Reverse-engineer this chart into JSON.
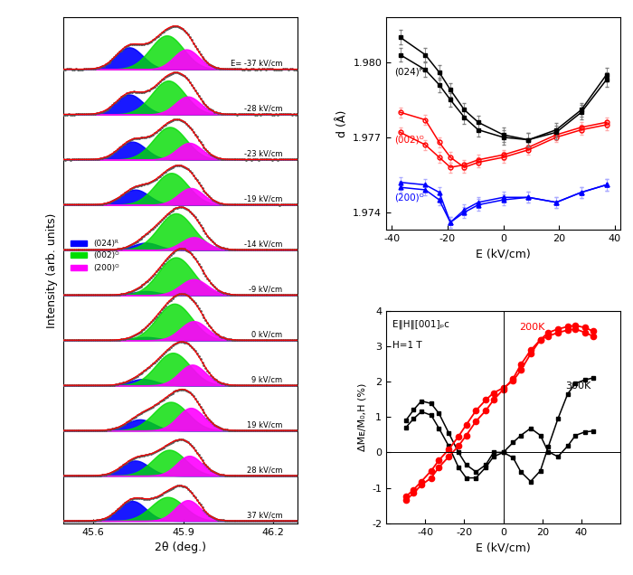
{
  "left_panel": {
    "xlabel": "2θ (deg.)",
    "ylabel": "Intensity (arb. units)",
    "xlim": [
      45.5,
      46.28
    ],
    "xticks": [
      45.6,
      45.9,
      46.2
    ],
    "labels": [
      "E= -37 kV/cm",
      "-28 kV/cm",
      "-23 kV/cm",
      "-19 kV/cm",
      "-14 kV/cm",
      "-9 kV/cm",
      "0 kV/cm",
      "9 kV/cm",
      "19 kV/cm",
      "28 kV/cm",
      "37 kV/cm"
    ],
    "peak_configs": [
      {
        "bc": 45.72,
        "gc": 45.845,
        "mc": 45.91,
        "ba": 0.55,
        "ga": 0.85,
        "ma": 0.5,
        "sb": 0.045,
        "sg": 0.055,
        "sm": 0.042
      },
      {
        "bc": 45.72,
        "gc": 45.85,
        "mc": 45.915,
        "ba": 0.5,
        "ga": 0.85,
        "ma": 0.45,
        "sb": 0.045,
        "sg": 0.055,
        "sm": 0.042
      },
      {
        "bc": 45.73,
        "gc": 45.855,
        "mc": 45.92,
        "ba": 0.45,
        "ga": 0.82,
        "ma": 0.42,
        "sb": 0.045,
        "sg": 0.055,
        "sm": 0.042
      },
      {
        "bc": 45.74,
        "gc": 45.86,
        "mc": 45.925,
        "ba": 0.38,
        "ga": 0.8,
        "ma": 0.42,
        "sb": 0.045,
        "sg": 0.055,
        "sm": 0.042
      },
      {
        "bc": 45.775,
        "gc": 45.875,
        "mc": 45.935,
        "ba": 0.18,
        "ga": 0.92,
        "ma": 0.32,
        "sb": 0.042,
        "sg": 0.058,
        "sm": 0.042
      },
      {
        "bc": 45.775,
        "gc": 45.875,
        "mc": 45.935,
        "ba": 0.1,
        "ga": 0.95,
        "ma": 0.4,
        "sb": 0.042,
        "sg": 0.058,
        "sm": 0.045
      },
      {
        "bc": 45.775,
        "gc": 45.87,
        "mc": 45.935,
        "ba": 0.08,
        "ga": 0.92,
        "ma": 0.48,
        "sb": 0.042,
        "sg": 0.058,
        "sm": 0.045
      },
      {
        "bc": 45.765,
        "gc": 45.865,
        "mc": 45.93,
        "ba": 0.16,
        "ga": 0.82,
        "ma": 0.52,
        "sb": 0.043,
        "sg": 0.057,
        "sm": 0.044
      },
      {
        "bc": 45.755,
        "gc": 45.858,
        "mc": 45.925,
        "ba": 0.28,
        "ga": 0.72,
        "ma": 0.57,
        "sb": 0.045,
        "sg": 0.057,
        "sm": 0.044
      },
      {
        "bc": 45.74,
        "gc": 45.853,
        "mc": 45.92,
        "ba": 0.38,
        "ga": 0.65,
        "ma": 0.5,
        "sb": 0.045,
        "sg": 0.055,
        "sm": 0.042
      },
      {
        "bc": 45.73,
        "gc": 45.848,
        "mc": 45.915,
        "ba": 0.5,
        "ga": 0.6,
        "ma": 0.52,
        "sb": 0.045,
        "sg": 0.055,
        "sm": 0.042
      }
    ]
  },
  "top_right": {
    "ylabel": "d (Å)",
    "xlabel": "E (kV/cm)",
    "xlim": [
      -42,
      42
    ],
    "xticks": [
      -40,
      -20,
      0,
      20,
      40
    ],
    "ylim": [
      1.9733,
      1.9818
    ],
    "yticks": [
      1.974,
      1.977,
      1.98
    ],
    "black_E": [
      -37,
      -28,
      -23,
      -19,
      -14,
      -9,
      0,
      9,
      19,
      28,
      37
    ],
    "black_d1": [
      1.981,
      1.9803,
      1.9796,
      1.9789,
      1.9781,
      1.9776,
      1.9771,
      1.9769,
      1.9772,
      1.978,
      1.9793
    ],
    "black_d2": [
      1.9803,
      1.9797,
      1.9791,
      1.9785,
      1.9778,
      1.9773,
      1.977,
      1.9769,
      1.9773,
      1.9781,
      1.9795
    ],
    "red_E": [
      -37,
      -28,
      -23,
      -19,
      -14,
      -9,
      0,
      9,
      19,
      28,
      37
    ],
    "red_d1": [
      1.978,
      1.9777,
      1.9768,
      1.9762,
      1.9758,
      1.976,
      1.9762,
      1.9765,
      1.977,
      1.9773,
      1.9775
    ],
    "red_d2": [
      1.9772,
      1.9767,
      1.9762,
      1.9758,
      1.9759,
      1.9761,
      1.9763,
      1.9766,
      1.9771,
      1.9774,
      1.9776
    ],
    "blue_E": [
      -37,
      -28,
      -23,
      -19,
      -14,
      -9,
      0,
      9,
      19,
      28,
      37
    ],
    "blue_d1": [
      1.9752,
      1.9751,
      1.9748,
      1.9736,
      1.9741,
      1.9744,
      1.9746,
      1.9746,
      1.9744,
      1.9748,
      1.9751
    ],
    "blue_d2": [
      1.975,
      1.9749,
      1.9745,
      1.9736,
      1.974,
      1.9743,
      1.9745,
      1.9746,
      1.9744,
      1.9748,
      1.9751
    ]
  },
  "bottom_right": {
    "ylabel": "ΔMᴇ/M₀,H (%)",
    "xlabel": "E (kV/cm)",
    "xlim": [
      -60,
      60
    ],
    "xticks": [
      -40,
      -20,
      0,
      20,
      40
    ],
    "ylim": [
      -2,
      4
    ],
    "yticks": [
      -2,
      -1,
      0,
      1,
      2,
      3,
      4
    ],
    "black_E_up": [
      -50,
      -46,
      -42,
      -37,
      -33,
      -28,
      -23,
      -19,
      -14,
      -9,
      -5,
      0,
      5,
      9,
      14,
      19,
      23,
      28,
      33,
      37,
      42,
      46
    ],
    "black_dM_up": [
      0.9,
      1.2,
      1.45,
      1.38,
      1.1,
      0.55,
      0.0,
      -0.35,
      -0.55,
      -0.35,
      0.0,
      0.0,
      -0.15,
      -0.55,
      -0.82,
      -0.52,
      0.15,
      0.95,
      1.65,
      1.95,
      2.05,
      2.1
    ],
    "black_E_dn": [
      -50,
      -46,
      -42,
      -37,
      -33,
      -28,
      -23,
      -19,
      -14,
      -9,
      -5,
      0,
      5,
      9,
      14,
      19,
      23,
      28,
      33,
      37,
      42,
      46
    ],
    "black_dM_dn": [
      0.7,
      0.95,
      1.15,
      1.05,
      0.68,
      0.18,
      -0.42,
      -0.72,
      -0.72,
      -0.42,
      -0.12,
      0.0,
      0.28,
      0.48,
      0.68,
      0.48,
      0.02,
      -0.12,
      0.18,
      0.48,
      0.58,
      0.6
    ],
    "red_E_up": [
      -50,
      -46,
      -42,
      -37,
      -33,
      -28,
      -23,
      -19,
      -14,
      -9,
      -5,
      0,
      5,
      9,
      14,
      19,
      23,
      28,
      33,
      37,
      42,
      46
    ],
    "red_dM_up": [
      -1.25,
      -1.05,
      -0.82,
      -0.52,
      -0.22,
      0.08,
      0.45,
      0.78,
      1.18,
      1.48,
      1.68,
      1.82,
      2.02,
      2.32,
      2.78,
      3.18,
      3.38,
      3.48,
      3.55,
      3.58,
      3.52,
      3.42
    ],
    "red_E_dn": [
      -50,
      -46,
      -42,
      -37,
      -33,
      -28,
      -23,
      -19,
      -14,
      -9,
      -5,
      0,
      5,
      9,
      14,
      19,
      23,
      28,
      33,
      37,
      42,
      46
    ],
    "red_dM_dn": [
      -1.35,
      -1.15,
      -0.92,
      -0.72,
      -0.42,
      -0.12,
      0.18,
      0.48,
      0.88,
      1.18,
      1.48,
      1.78,
      2.08,
      2.48,
      2.88,
      3.18,
      3.28,
      3.38,
      3.45,
      3.48,
      3.38,
      3.28
    ]
  }
}
